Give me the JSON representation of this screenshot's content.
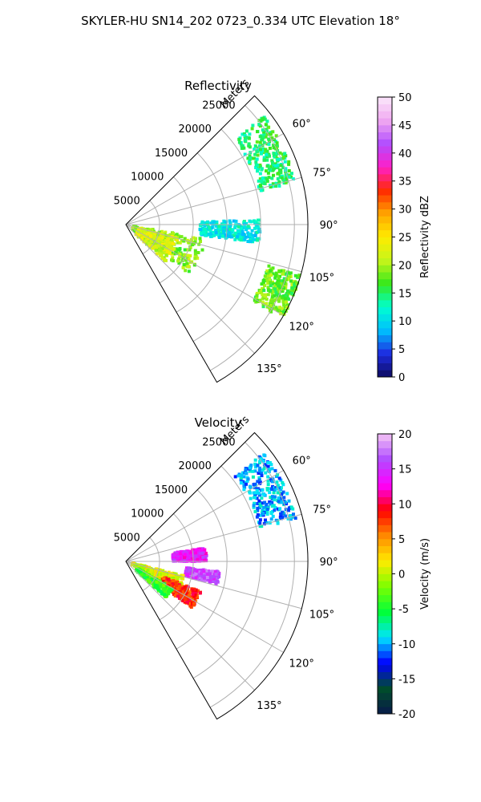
{
  "suptitle": "SKYLER-HU  SN14_202  0723_0.334 UTC Elevation 18°",
  "chart_data": [
    {
      "type": "heatmap",
      "subtype": "polar-sector-radar",
      "title": "Reflectivity",
      "radial_label": "Meters",
      "radial_ticks": [
        "5000",
        "10000",
        "15000",
        "20000",
        "25000"
      ],
      "radial_range": [
        0,
        27000
      ],
      "azimuth_range_deg": [
        45,
        150
      ],
      "azimuth_ticks": [
        "60°",
        "75°",
        "90°",
        "105°",
        "120°",
        "135°"
      ],
      "grid": true,
      "colorbar": {
        "label": "Reflectivity dBZ",
        "range": [
          0,
          50
        ],
        "ticks": [
          "0",
          "5",
          "10",
          "15",
          "20",
          "25",
          "30",
          "35",
          "40",
          "45",
          "50"
        ]
      },
      "echo_regions": [
        {
          "az_deg": [
            52,
            76
          ],
          "range_m": [
            20500,
            26000
          ],
          "value": 15
        },
        {
          "az_deg": [
            88,
            98
          ],
          "range_m": [
            11000,
            20000
          ],
          "value": 11
        },
        {
          "az_deg": [
            100,
            128
          ],
          "range_m": [
            1000,
            12000
          ],
          "value": 19
        },
        {
          "az_deg": [
            104,
            134
          ],
          "range_m": [
            2000,
            8000
          ],
          "value": 22
        },
        {
          "az_deg": [
            106,
            121
          ],
          "range_m": [
            22000,
            27000
          ],
          "value": 18
        }
      ]
    },
    {
      "type": "heatmap",
      "subtype": "polar-sector-radar",
      "title": "Velocity",
      "radial_label": "Meters",
      "radial_ticks": [
        "5000",
        "10000",
        "15000",
        "20000",
        "25000"
      ],
      "radial_range": [
        0,
        27000
      ],
      "azimuth_range_deg": [
        45,
        150
      ],
      "azimuth_ticks": [
        "60°",
        "75°",
        "90°",
        "105°",
        "120°",
        "135°"
      ],
      "grid": true,
      "colorbar": {
        "label": "Velocity (m/s)",
        "range": [
          -20,
          20
        ],
        "ticks": [
          "-20",
          "-15",
          "-10",
          "-5",
          "0",
          "5",
          "10",
          "15",
          "20"
        ]
      },
      "echo_regions": [
        {
          "az_deg": [
            52,
            76
          ],
          "range_m": [
            20500,
            26000
          ],
          "value": -10
        },
        {
          "az_deg": [
            80,
            90
          ],
          "range_m": [
            7000,
            12000
          ],
          "value": 14
        },
        {
          "az_deg": [
            96,
            104
          ],
          "range_m": [
            9000,
            14000
          ],
          "value": 16
        },
        {
          "az_deg": [
            104,
            118
          ],
          "range_m": [
            1000,
            9000
          ],
          "value": 1
        },
        {
          "az_deg": [
            112,
            125
          ],
          "range_m": [
            6000,
            12000
          ],
          "value": 8
        },
        {
          "az_deg": [
            120,
            132
          ],
          "range_m": [
            2000,
            8000
          ],
          "value": -4
        }
      ]
    }
  ],
  "colors": {
    "reflectivity_scale": [
      "#0d0a5e",
      "#1d2be0",
      "#00bfff",
      "#00ffd0",
      "#36e81b",
      "#c6f51a",
      "#ffeb00",
      "#ffa500",
      "#ff2a00",
      "#ff1fc8",
      "#b14cff",
      "#f0a8f0",
      "#fbe7fb"
    ],
    "velocity_scale": [
      "#081a4a",
      "#004d2b",
      "#0000ff",
      "#00e5ff",
      "#00ff3a",
      "#7cff00",
      "#ffeb00",
      "#ff8a00",
      "#ff0000",
      "#ff00ff",
      "#b04cff",
      "#f4c4f4"
    ],
    "grid": "#b0b0b0"
  }
}
